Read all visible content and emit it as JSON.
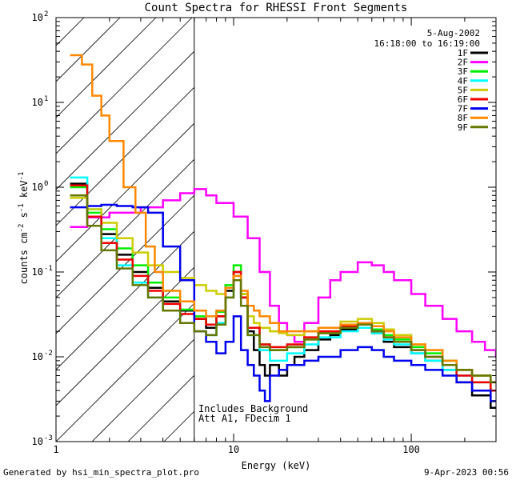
{
  "chart_data": {
    "type": "line",
    "style": "histogram-step",
    "title": "Count Spectra for RHESSI Front Segments",
    "xlabel": "Energy (keV)",
    "ylabel": "counts cm-2 s-1 keV-1",
    "x_scale": "log",
    "y_scale": "log",
    "xlim": [
      1,
      300
    ],
    "ylim": [
      0.001,
      100
    ],
    "x_ticks": [
      {
        "value": 1,
        "label": "1"
      },
      {
        "value": 10,
        "label": "10"
      },
      {
        "value": 100,
        "label": "100"
      }
    ],
    "y_ticks": [
      {
        "value": 0.001,
        "mant": "10",
        "exp": "-3"
      },
      {
        "value": 0.01,
        "mant": "10",
        "exp": "-2"
      },
      {
        "value": 0.1,
        "mant": "10",
        "exp": "-1"
      },
      {
        "value": 1,
        "mant": "10",
        "exp": "0"
      },
      {
        "value": 10,
        "mant": "10",
        "exp": "1"
      },
      {
        "value": 100,
        "mant": "10",
        "exp": "2"
      }
    ],
    "attenuator_boundary_keV": 6,
    "legend_placement": "top-right",
    "date": "5-Aug-2002",
    "time_range": "16:18:00 to 16:19:00",
    "annotations": [
      "Includes Background",
      "Att A1, FDecim 1"
    ],
    "series": [
      {
        "name": "1F",
        "color": "#000000",
        "points": [
          [
            1.2,
            1.1
          ],
          [
            1.5,
            0.45
          ],
          [
            1.8,
            0.28
          ],
          [
            2.2,
            0.16
          ],
          [
            2.7,
            0.1
          ],
          [
            3.3,
            0.065
          ],
          [
            4,
            0.045
          ],
          [
            5,
            0.035
          ],
          [
            6,
            0.028
          ],
          [
            7,
            0.022
          ],
          [
            8,
            0.03
          ],
          [
            9,
            0.06
          ],
          [
            10,
            0.1
          ],
          [
            11,
            0.05
          ],
          [
            12,
            0.02
          ],
          [
            13,
            0.012
          ],
          [
            14,
            0.008
          ],
          [
            15,
            0.006
          ],
          [
            16,
            0.008
          ],
          [
            18,
            0.006
          ],
          [
            20,
            0.008
          ],
          [
            22,
            0.01
          ],
          [
            25,
            0.012
          ],
          [
            30,
            0.016
          ],
          [
            35,
            0.018
          ],
          [
            40,
            0.021
          ],
          [
            50,
            0.022
          ],
          [
            60,
            0.019
          ],
          [
            70,
            0.015
          ],
          [
            80,
            0.013
          ],
          [
            100,
            0.011
          ],
          [
            120,
            0.009
          ],
          [
            150,
            0.007
          ],
          [
            180,
            0.005
          ],
          [
            220,
            0.0035
          ],
          [
            280,
            0.0025
          ]
        ]
      },
      {
        "name": "2F",
        "color": "#ff00ff",
        "points": [
          [
            1.2,
            0.34
          ],
          [
            1.5,
            0.44
          ],
          [
            2,
            0.5
          ],
          [
            3,
            0.58
          ],
          [
            4,
            0.7
          ],
          [
            5,
            0.85
          ],
          [
            6,
            0.95
          ],
          [
            7,
            0.8
          ],
          [
            8,
            0.65
          ],
          [
            10,
            0.45
          ],
          [
            12,
            0.25
          ],
          [
            14,
            0.1
          ],
          [
            16,
            0.04
          ],
          [
            18,
            0.025
          ],
          [
            20,
            0.018
          ],
          [
            22,
            0.015
          ],
          [
            25,
            0.025
          ],
          [
            30,
            0.05
          ],
          [
            35,
            0.08
          ],
          [
            40,
            0.1
          ],
          [
            50,
            0.13
          ],
          [
            60,
            0.12
          ],
          [
            70,
            0.1
          ],
          [
            80,
            0.08
          ],
          [
            100,
            0.055
          ],
          [
            120,
            0.04
          ],
          [
            150,
            0.028
          ],
          [
            180,
            0.02
          ],
          [
            220,
            0.015
          ],
          [
            260,
            0.012
          ],
          [
            300,
            0.01
          ]
        ]
      },
      {
        "name": "3F",
        "color": "#00ee00",
        "points": [
          [
            1.2,
            1
          ],
          [
            1.5,
            0.5
          ],
          [
            1.8,
            0.32
          ],
          [
            2.2,
            0.19
          ],
          [
            2.7,
            0.12
          ],
          [
            3.3,
            0.075
          ],
          [
            4,
            0.05
          ],
          [
            5,
            0.036
          ],
          [
            6,
            0.03
          ],
          [
            7,
            0.024
          ],
          [
            8,
            0.034
          ],
          [
            9,
            0.07
          ],
          [
            10,
            0.12
          ],
          [
            11,
            0.055
          ],
          [
            12,
            0.022
          ],
          [
            14,
            0.014
          ],
          [
            16,
            0.012
          ],
          [
            18,
            0.012
          ],
          [
            20,
            0.013
          ],
          [
            25,
            0.016
          ],
          [
            30,
            0.019
          ],
          [
            40,
            0.023
          ],
          [
            50,
            0.025
          ],
          [
            60,
            0.021
          ],
          [
            70,
            0.018
          ],
          [
            80,
            0.016
          ],
          [
            100,
            0.013
          ],
          [
            120,
            0.011
          ],
          [
            150,
            0.009
          ],
          [
            180,
            0.007
          ],
          [
            220,
            0.006
          ],
          [
            280,
            0.004
          ]
        ]
      },
      {
        "name": "4F",
        "color": "#00ffff",
        "points": [
          [
            1.2,
            1.3
          ],
          [
            1.5,
            0.55
          ],
          [
            1.8,
            0.25
          ],
          [
            2.2,
            0.12
          ],
          [
            2.7,
            0.075
          ],
          [
            3.3,
            0.05
          ],
          [
            4,
            0.035
          ],
          [
            5,
            0.025
          ],
          [
            6,
            0.02
          ],
          [
            7,
            0.018
          ],
          [
            8,
            0.025
          ],
          [
            9,
            0.05
          ],
          [
            10,
            0.08
          ],
          [
            11,
            0.04
          ],
          [
            12,
            0.018
          ],
          [
            14,
            0.012
          ],
          [
            16,
            0.009
          ],
          [
            18,
            0.009
          ],
          [
            20,
            0.011
          ],
          [
            25,
            0.014
          ],
          [
            30,
            0.017
          ],
          [
            40,
            0.02
          ],
          [
            50,
            0.022
          ],
          [
            60,
            0.019
          ],
          [
            70,
            0.016
          ],
          [
            80,
            0.014
          ],
          [
            100,
            0.011
          ],
          [
            120,
            0.009
          ],
          [
            150,
            0.007
          ],
          [
            180,
            0.006
          ],
          [
            220,
            0.005
          ],
          [
            280,
            0.004
          ]
        ]
      },
      {
        "name": "5F",
        "color": "#cccc00",
        "points": [
          [
            1.2,
            0.75
          ],
          [
            1.5,
            0.55
          ],
          [
            1.8,
            0.38
          ],
          [
            2.2,
            0.25
          ],
          [
            2.7,
            0.17
          ],
          [
            3.3,
            0.12
          ],
          [
            4,
            0.1
          ],
          [
            5,
            0.085
          ],
          [
            6,
            0.07
          ],
          [
            7,
            0.06
          ],
          [
            8,
            0.055
          ],
          [
            9,
            0.065
          ],
          [
            10,
            0.09
          ],
          [
            11,
            0.055
          ],
          [
            12,
            0.03
          ],
          [
            13,
            0.025
          ],
          [
            14,
            0.022
          ],
          [
            16,
            0.02
          ],
          [
            18,
            0.019
          ],
          [
            20,
            0.018
          ],
          [
            25,
            0.02
          ],
          [
            30,
            0.022
          ],
          [
            40,
            0.026
          ],
          [
            50,
            0.028
          ],
          [
            60,
            0.025
          ],
          [
            70,
            0.021
          ],
          [
            80,
            0.018
          ],
          [
            100,
            0.014
          ],
          [
            120,
            0.012
          ],
          [
            150,
            0.009
          ],
          [
            180,
            0.007
          ],
          [
            220,
            0.005
          ],
          [
            280,
            0.004
          ]
        ]
      },
      {
        "name": "6F",
        "color": "#ee0000",
        "points": [
          [
            1.2,
            1.05
          ],
          [
            1.5,
            0.45
          ],
          [
            1.8,
            0.22
          ],
          [
            2.2,
            0.14
          ],
          [
            2.7,
            0.09
          ],
          [
            3.3,
            0.06
          ],
          [
            4,
            0.042
          ],
          [
            5,
            0.032
          ],
          [
            6,
            0.028
          ],
          [
            7,
            0.024
          ],
          [
            8,
            0.03
          ],
          [
            9,
            0.065
          ],
          [
            10,
            0.1
          ],
          [
            11,
            0.05
          ],
          [
            12,
            0.022
          ],
          [
            14,
            0.014
          ],
          [
            16,
            0.013
          ],
          [
            18,
            0.013
          ],
          [
            20,
            0.014
          ],
          [
            25,
            0.017
          ],
          [
            30,
            0.02
          ],
          [
            40,
            0.023
          ],
          [
            50,
            0.024
          ],
          [
            60,
            0.02
          ],
          [
            70,
            0.017
          ],
          [
            80,
            0.015
          ],
          [
            100,
            0.012
          ],
          [
            120,
            0.01
          ],
          [
            150,
            0.008
          ],
          [
            180,
            0.006
          ],
          [
            220,
            0.005
          ],
          [
            280,
            0.004
          ]
        ]
      },
      {
        "name": "7F",
        "color": "#0000ee",
        "points": [
          [
            1.2,
            0.58
          ],
          [
            1.5,
            0.6
          ],
          [
            1.8,
            0.62
          ],
          [
            2.2,
            0.6
          ],
          [
            2.7,
            0.58
          ],
          [
            3.3,
            0.5
          ],
          [
            4,
            0.2
          ],
          [
            5,
            0.08
          ],
          [
            6,
            0.02
          ],
          [
            7,
            0.015
          ],
          [
            8,
            0.011
          ],
          [
            9,
            0.015
          ],
          [
            10,
            0.03
          ],
          [
            11,
            0.012
          ],
          [
            12,
            0.008
          ],
          [
            13,
            0.006
          ],
          [
            14,
            0.004
          ],
          [
            15,
            0.003
          ],
          [
            16,
            0.006
          ],
          [
            18,
            0.007
          ],
          [
            20,
            0.008
          ],
          [
            25,
            0.009
          ],
          [
            30,
            0.01
          ],
          [
            40,
            0.012
          ],
          [
            50,
            0.013
          ],
          [
            60,
            0.012
          ],
          [
            70,
            0.01
          ],
          [
            80,
            0.009
          ],
          [
            100,
            0.008
          ],
          [
            120,
            0.007
          ],
          [
            150,
            0.006
          ],
          [
            180,
            0.005
          ],
          [
            220,
            0.004
          ],
          [
            280,
            0.003
          ]
        ]
      },
      {
        "name": "8F",
        "color": "#ff8800",
        "points": [
          [
            1.2,
            36
          ],
          [
            1.4,
            28
          ],
          [
            1.6,
            12
          ],
          [
            1.8,
            7
          ],
          [
            2,
            3.5
          ],
          [
            2.4,
            1
          ],
          [
            2.8,
            0.5
          ],
          [
            3.2,
            0.2
          ],
          [
            3.6,
            0.1
          ],
          [
            4,
            0.06
          ],
          [
            5,
            0.045
          ],
          [
            6,
            0.035
          ],
          [
            7,
            0.03
          ],
          [
            8,
            0.035
          ],
          [
            9,
            0.065
          ],
          [
            10,
            0.09
          ],
          [
            11,
            0.06
          ],
          [
            12,
            0.04
          ],
          [
            13,
            0.035
          ],
          [
            14,
            0.03
          ],
          [
            16,
            0.025
          ],
          [
            18,
            0.02
          ],
          [
            20,
            0.02
          ],
          [
            25,
            0.02
          ],
          [
            30,
            0.022
          ],
          [
            40,
            0.024
          ],
          [
            50,
            0.025
          ],
          [
            60,
            0.023
          ],
          [
            70,
            0.02
          ],
          [
            80,
            0.017
          ],
          [
            100,
            0.014
          ],
          [
            120,
            0.012
          ],
          [
            150,
            0.009
          ],
          [
            180,
            0.007
          ],
          [
            220,
            0.006
          ],
          [
            280,
            0.005
          ]
        ]
      },
      {
        "name": "9F",
        "color": "#667700",
        "points": [
          [
            1.2,
            0.8
          ],
          [
            1.5,
            0.35
          ],
          [
            1.8,
            0.18
          ],
          [
            2.2,
            0.11
          ],
          [
            2.7,
            0.07
          ],
          [
            3.3,
            0.05
          ],
          [
            4,
            0.035
          ],
          [
            5,
            0.025
          ],
          [
            6,
            0.02
          ],
          [
            7,
            0.018
          ],
          [
            8,
            0.024
          ],
          [
            9,
            0.05
          ],
          [
            10,
            0.08
          ],
          [
            11,
            0.04
          ],
          [
            12,
            0.018
          ],
          [
            14,
            0.013
          ],
          [
            16,
            0.012
          ],
          [
            18,
            0.012
          ],
          [
            20,
            0.013
          ],
          [
            25,
            0.016
          ],
          [
            30,
            0.019
          ],
          [
            40,
            0.022
          ],
          [
            50,
            0.024
          ],
          [
            60,
            0.02
          ],
          [
            70,
            0.017
          ],
          [
            80,
            0.015
          ],
          [
            100,
            0.012
          ],
          [
            120,
            0.01
          ],
          [
            150,
            0.008
          ],
          [
            180,
            0.007
          ],
          [
            220,
            0.006
          ],
          [
            280,
            0.005
          ]
        ]
      }
    ]
  },
  "footer": {
    "generated_by": "Generated by hsi_min_spectra_plot.pro",
    "timestamp": "9-Apr-2023 00:56"
  }
}
